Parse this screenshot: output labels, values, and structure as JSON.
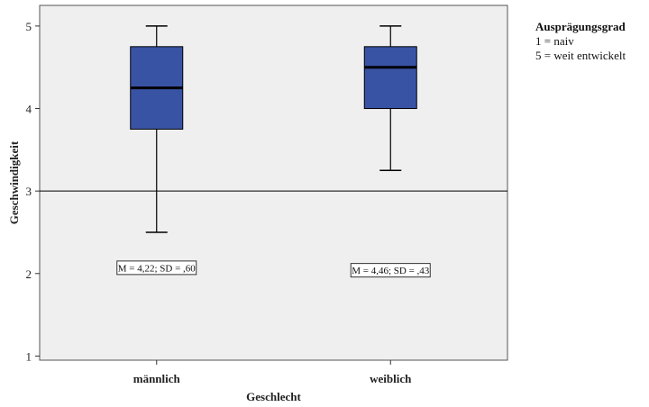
{
  "chart_data": {
    "type": "box",
    "categories": [
      "männlich",
      "weiblich"
    ],
    "boxes": [
      {
        "min": 2.5,
        "q1": 3.75,
        "median": 4.25,
        "q3": 4.75,
        "max": 5.0,
        "annotation": "M = 4,22; SD = ,60",
        "annotation_y": 2.07
      },
      {
        "min": 3.25,
        "q1": 4.0,
        "median": 4.5,
        "q3": 4.75,
        "max": 5.0,
        "annotation": "M = 4,46; SD = ,43",
        "annotation_y": 2.04
      }
    ],
    "reference_line": 3,
    "xlabel": "Geschlecht",
    "ylabel": "Geschwindigkeit",
    "ylim": [
      0.95,
      5.25
    ],
    "yticks": [
      1,
      2,
      3,
      4,
      5
    ],
    "box_color": "#3953a4",
    "plot_background": "#efefef",
    "legend": {
      "title": "Ausprägungsgrad",
      "lines": [
        "1 = naiv",
        "5 = weit entwickelt"
      ],
      "position": "top-right"
    }
  }
}
